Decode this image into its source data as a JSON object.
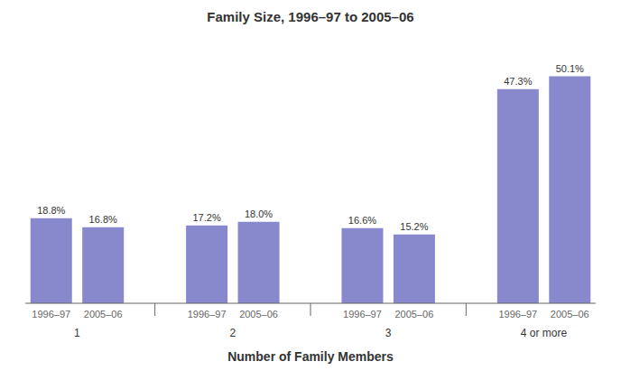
{
  "chart_data": {
    "type": "bar",
    "title": "Family Size, 1996–97 to 2005–06",
    "xlabel": "Number of Family Members",
    "categories": [
      "1",
      "2",
      "3",
      "4 or more"
    ],
    "series": [
      {
        "name": "1996–97",
        "color": "#8888cc",
        "values": [
          18.8,
          17.2,
          16.6,
          47.3
        ],
        "value_labels": [
          "18.8%",
          "17.2%",
          "16.6%",
          "47.3%"
        ]
      },
      {
        "name": "2005–06",
        "color": "#8888cc",
        "values": [
          16.8,
          18.0,
          15.2,
          50.1
        ],
        "value_labels": [
          "16.8%",
          "18.0%",
          "15.2%",
          "50.1%"
        ]
      }
    ],
    "ylim": [
      0,
      57
    ],
    "data_labels": true,
    "tick_labels": "x",
    "grid": false
  }
}
